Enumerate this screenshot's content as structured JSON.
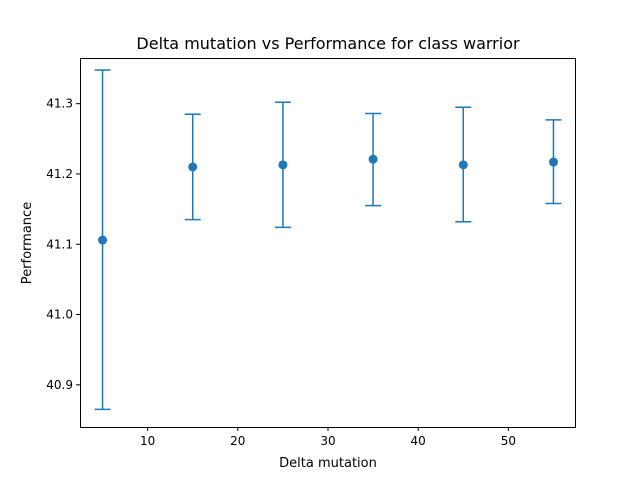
{
  "chart_data": {
    "type": "scatter",
    "title": "Delta mutation vs Performance for class warrior",
    "xlabel": "Delta mutation",
    "ylabel": "Performance",
    "xlim": [
      2.5,
      57.5
    ],
    "ylim": [
      40.84,
      41.365
    ],
    "xticks": [
      10,
      20,
      30,
      40,
      50
    ],
    "xtick_labels": [
      "10",
      "20",
      "30",
      "40",
      "50"
    ],
    "yticks": [
      40.9,
      41.0,
      41.1,
      41.2,
      41.3
    ],
    "ytick_labels": [
      "40.9",
      "41.0",
      "41.1",
      "41.2",
      "41.3"
    ],
    "grid": false,
    "color": "#1f77b4",
    "series": [
      {
        "x": [
          5,
          15,
          25,
          35,
          45,
          55
        ],
        "y": [
          41.106,
          41.21,
          41.213,
          41.221,
          41.213,
          41.217
        ],
        "yerr_low": [
          40.865,
          41.135,
          41.124,
          41.155,
          41.132,
          41.158
        ],
        "yerr_high": [
          41.348,
          41.285,
          41.302,
          41.286,
          41.295,
          41.277
        ]
      }
    ]
  }
}
